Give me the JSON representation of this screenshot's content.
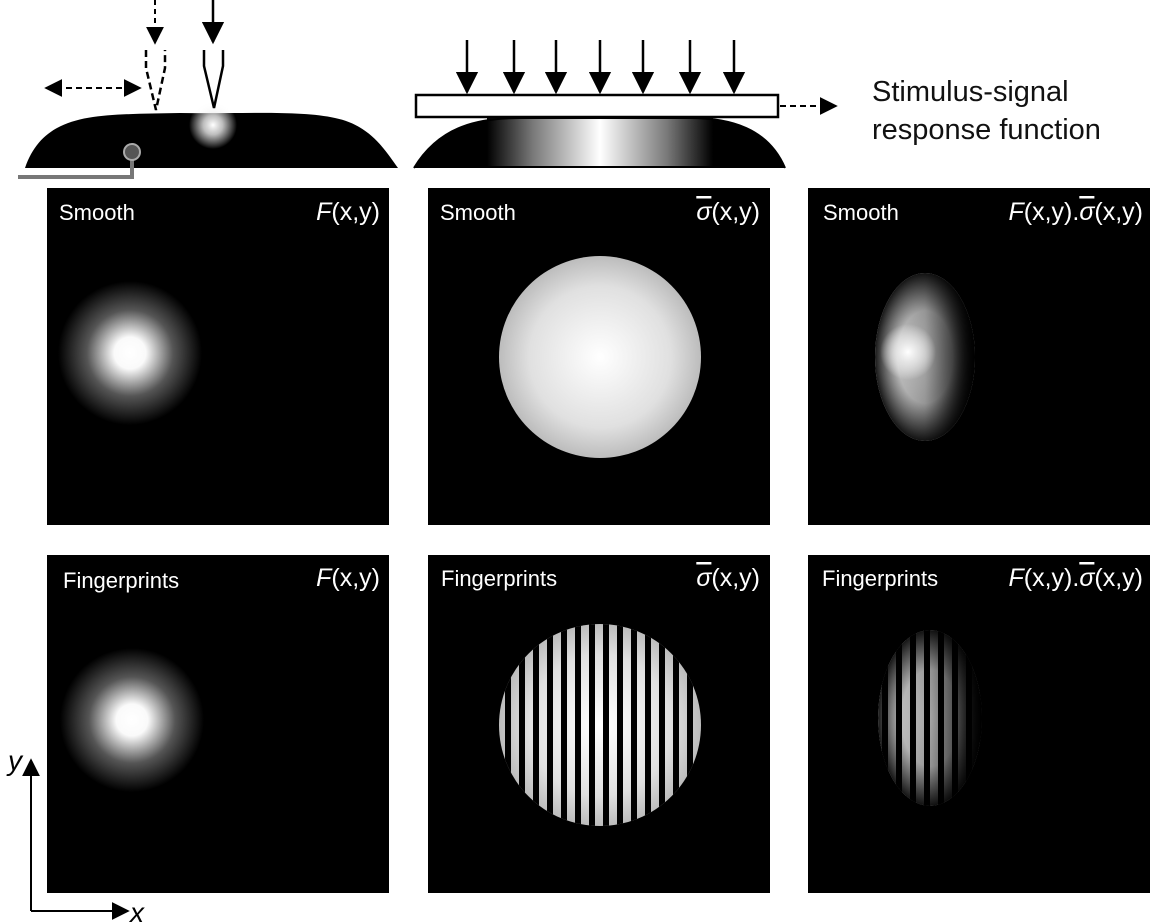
{
  "schematic": {
    "caption_line1": "Stimulus-signal",
    "caption_line2": "response function"
  },
  "panels": [
    {
      "row_label": "Smooth",
      "formula": {
        "f": "F",
        "args": "(x,y)"
      }
    },
    {
      "row_label": "Smooth",
      "formula": {
        "f": "σ",
        "args": "(x,y)"
      }
    },
    {
      "row_label": "Smooth",
      "formula": {
        "f": "F",
        "args": "(x,y)",
        "dot": ".",
        "g": "σ",
        "args2": "(x,y)"
      }
    },
    {
      "row_label": "Fingerprints",
      "formula": {
        "f": "F",
        "args": "(x,y)"
      }
    },
    {
      "row_label": "Fingerprints",
      "formula": {
        "f": "σ",
        "args": "(x,y)"
      }
    },
    {
      "row_label": "Fingerprints",
      "formula": {
        "f": "F",
        "args": "(x,y)",
        "dot": ".",
        "g": "σ",
        "args2": "(x,y)"
      }
    }
  ],
  "axes": {
    "x_label": "x",
    "y_label": "y"
  },
  "colors": {
    "background": "#000000",
    "foreground": "#ffffff",
    "probe": "#888888"
  }
}
